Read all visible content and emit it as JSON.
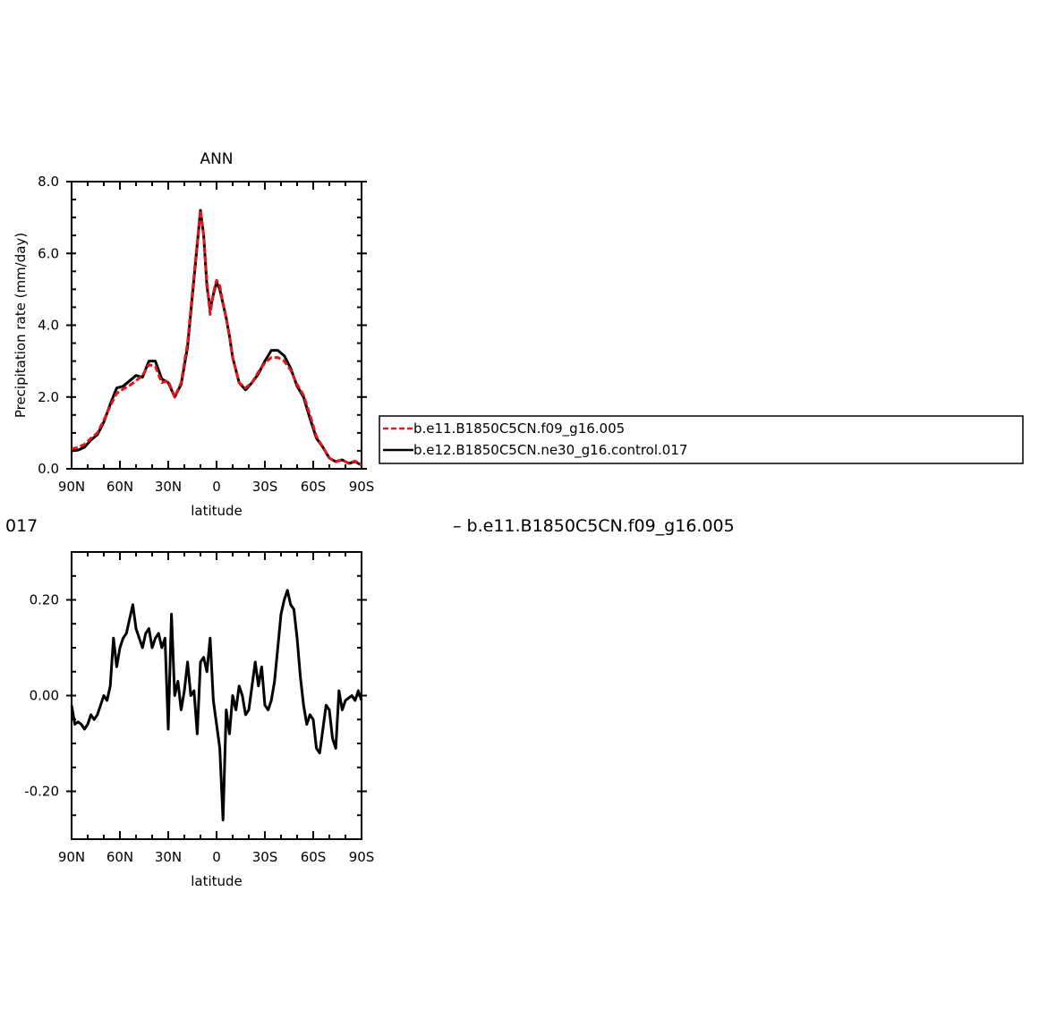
{
  "chart_data": [
    {
      "type": "line",
      "title": "ANN",
      "xlabel": "latitude",
      "ylabel": "Precipitation rate (mm/day)",
      "x_ticks": [
        "90N",
        "60N",
        "30N",
        "0",
        "30S",
        "60S",
        "90S"
      ],
      "y_ticks": [
        "0.0",
        "2.0",
        "4.0",
        "6.0",
        "8.0"
      ],
      "xlim": [
        90,
        -90
      ],
      "ylim": [
        0,
        8
      ],
      "grid": false,
      "legend_placement": "right",
      "x": [
        90,
        86,
        82,
        78,
        74,
        70,
        66,
        62,
        58,
        54,
        50,
        46,
        42,
        38,
        34,
        30,
        26,
        22,
        18,
        14,
        10,
        8,
        6,
        4,
        2,
        0,
        -2,
        -4,
        -6,
        -8,
        -10,
        -14,
        -18,
        -22,
        -26,
        -30,
        -34,
        -38,
        -42,
        -46,
        -50,
        -54,
        -58,
        -62,
        -66,
        -70,
        -74,
        -78,
        -82,
        -86,
        -90
      ],
      "series": [
        {
          "name": "b.e11.B1850C5CN.f09_g16.005",
          "color": "#e8141b",
          "dashed": true,
          "values": [
            0.55,
            0.6,
            0.68,
            0.85,
            1.0,
            1.35,
            1.75,
            2.1,
            2.22,
            2.32,
            2.45,
            2.6,
            2.9,
            2.85,
            2.4,
            2.45,
            2.0,
            2.4,
            3.5,
            5.4,
            7.2,
            6.5,
            5.2,
            4.3,
            4.9,
            5.25,
            5.1,
            4.6,
            4.2,
            3.7,
            3.1,
            2.4,
            2.25,
            2.4,
            2.7,
            2.95,
            3.1,
            3.1,
            3.0,
            2.75,
            2.35,
            2.05,
            1.5,
            0.9,
            0.6,
            0.3,
            0.2,
            0.25,
            0.15,
            0.22,
            0.1
          ]
        },
        {
          "name": "b.e12.B1850C5CN.ne30_g16.control.017",
          "color": "#000000",
          "dashed": false,
          "values": [
            0.5,
            0.52,
            0.6,
            0.8,
            0.95,
            1.3,
            1.8,
            2.25,
            2.3,
            2.45,
            2.6,
            2.55,
            3.0,
            3.0,
            2.5,
            2.4,
            2.0,
            2.35,
            3.4,
            5.3,
            7.2,
            6.5,
            5.1,
            4.45,
            4.85,
            5.2,
            5.0,
            4.6,
            4.2,
            3.7,
            3.1,
            2.4,
            2.2,
            2.4,
            2.65,
            3.0,
            3.3,
            3.3,
            3.15,
            2.8,
            2.3,
            2.0,
            1.4,
            0.85,
            0.6,
            0.3,
            0.2,
            0.25,
            0.15,
            0.2,
            0.1
          ]
        }
      ]
    },
    {
      "type": "line",
      "title": "",
      "title_fragment_left": "017",
      "title_fragment_right": "– b.e11.B1850C5CN.f09_g16.005",
      "xlabel": "latitude",
      "ylabel": "",
      "x_ticks": [
        "90N",
        "60N",
        "30N",
        "0",
        "30S",
        "60S",
        "90S"
      ],
      "y_ticks": [
        "-0.20",
        "0.00",
        "0.20"
      ],
      "xlim": [
        90,
        -90
      ],
      "ylim": [
        -0.3,
        0.3
      ],
      "grid": false,
      "x": [
        90,
        88,
        86,
        84,
        82,
        80,
        78,
        76,
        74,
        72,
        70,
        68,
        66,
        64,
        62,
        60,
        58,
        56,
        54,
        52,
        50,
        48,
        46,
        44,
        42,
        40,
        38,
        36,
        34,
        32,
        30,
        28,
        26,
        24,
        22,
        20,
        18,
        16,
        14,
        12,
        10,
        8,
        6,
        4,
        2,
        0,
        -2,
        -4,
        -6,
        -8,
        -10,
        -12,
        -14,
        -16,
        -18,
        -20,
        -22,
        -24,
        -26,
        -28,
        -30,
        -32,
        -34,
        -36,
        -38,
        -40,
        -42,
        -44,
        -46,
        -48,
        -50,
        -52,
        -54,
        -56,
        -58,
        -60,
        -62,
        -64,
        -66,
        -68,
        -70,
        -72,
        -74,
        -76,
        -78,
        -80,
        -82,
        -84,
        -86,
        -88,
        -90
      ],
      "series": [
        {
          "name": "",
          "color": "#000000",
          "dashed": false,
          "values": [
            -0.02,
            -0.06,
            -0.055,
            -0.06,
            -0.07,
            -0.06,
            -0.04,
            -0.05,
            -0.04,
            -0.02,
            0.0,
            -0.01,
            0.02,
            0.12,
            0.06,
            0.1,
            0.12,
            0.13,
            0.16,
            0.19,
            0.14,
            0.12,
            0.1,
            0.13,
            0.14,
            0.1,
            0.12,
            0.13,
            0.1,
            0.12,
            -0.07,
            0.17,
            0.0,
            0.03,
            -0.03,
            0.01,
            0.07,
            0.0,
            0.01,
            -0.08,
            0.07,
            0.08,
            0.05,
            0.12,
            -0.01,
            -0.06,
            -0.11,
            -0.26,
            -0.03,
            -0.08,
            0.0,
            -0.03,
            0.02,
            0.0,
            -0.04,
            -0.03,
            0.02,
            0.07,
            0.02,
            0.06,
            -0.02,
            -0.03,
            -0.01,
            0.03,
            0.1,
            0.17,
            0.2,
            0.22,
            0.19,
            0.18,
            0.12,
            0.04,
            -0.02,
            -0.06,
            -0.04,
            -0.05,
            -0.11,
            -0.12,
            -0.07,
            -0.02,
            -0.03,
            -0.09,
            -0.11,
            0.01,
            -0.03,
            -0.01,
            -0.005,
            0.0,
            -0.01,
            0.01,
            -0.01
          ]
        }
      ]
    }
  ],
  "legend": {
    "items": [
      {
        "label": "b.e11.B1850C5CN.f09_g16.005"
      },
      {
        "label": "b.e12.B1850C5CN.ne30_g16.control.017"
      }
    ]
  }
}
